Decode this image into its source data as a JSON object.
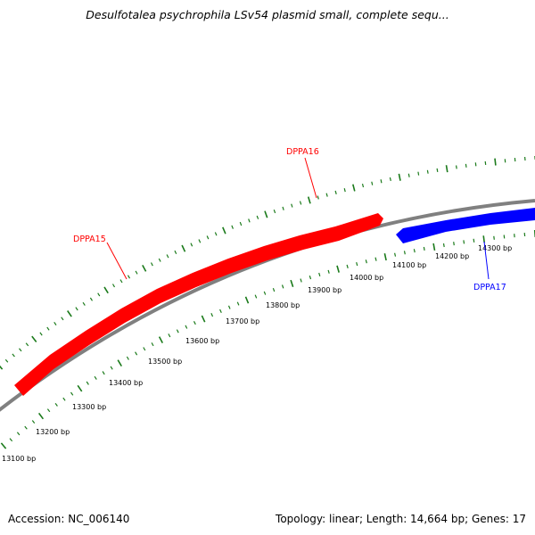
{
  "title": "Desulfotalea psychrophila LSv54 plasmid small, complete sequ...",
  "footer": {
    "accession": "Accession: NC_006140",
    "summary": "Topology: linear; Length: 14,664 bp; Genes: 17"
  },
  "colors": {
    "forward_gene": "#ff0000",
    "reverse_gene": "#0000ff",
    "backbone": "#808080",
    "ticks": "#1a7a1a"
  },
  "ruler_labels": [
    "13100 bp",
    "13200 bp",
    "13300 bp",
    "13400 bp",
    "13500 bp",
    "13600 bp",
    "13700 bp",
    "13800 bp",
    "13900 bp",
    "14000 bp",
    "14100 bp",
    "14200 bp",
    "14300 bp"
  ],
  "genes": [
    {
      "name": "DPPA15",
      "strand": "forward"
    },
    {
      "name": "DPPA16",
      "strand": "forward"
    },
    {
      "name": "DPPA17",
      "strand": "reverse"
    }
  ]
}
